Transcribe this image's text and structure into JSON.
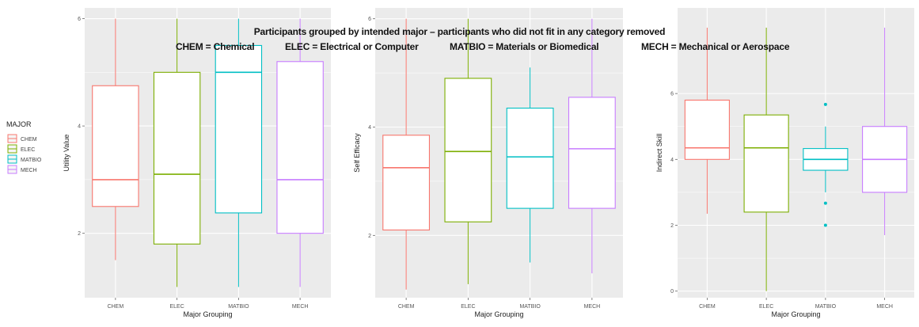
{
  "overlay": {
    "title": "Participants grouped by intended major – participants who did not fit in any category removed",
    "abbreviations": [
      "CHEM = Chemical",
      "ELEC = Electrical or Computer",
      "MATBIO = Materials or Biomedical",
      "MECH = Mechanical or Aerospace"
    ]
  },
  "legend": {
    "title": "MAJOR",
    "position": "left",
    "items": [
      "CHEM",
      "ELEC",
      "MATBIO",
      "MECH"
    ]
  },
  "colors": {
    "CHEM": "#F8766D",
    "ELEC": "#7CAE00",
    "MATBIO": "#00BFC4",
    "MECH": "#C77CFF",
    "panel_bg": "#EBEBEB",
    "grid": "#FFFFFF"
  },
  "chart_data": [
    {
      "type": "boxplot",
      "xlabel": "Major Grouping",
      "ylabel": "Utility Value",
      "categories": [
        "CHEM",
        "ELEC",
        "MATBIO",
        "MECH"
      ],
      "ylim": [
        0.8,
        6.2
      ],
      "yticks": [
        2,
        4,
        6
      ],
      "grid": true,
      "boxes": [
        {
          "category": "CHEM",
          "min": 1.5,
          "q1": 2.5,
          "median": 3.0,
          "q3": 4.75,
          "max": 6.0,
          "outliers": []
        },
        {
          "category": "ELEC",
          "min": 1.0,
          "q1": 1.8,
          "median": 3.1,
          "q3": 5.0,
          "max": 6.0,
          "outliers": []
        },
        {
          "category": "MATBIO",
          "min": 1.0,
          "q1": 2.38,
          "median": 5.0,
          "q3": 5.5,
          "max": 6.0,
          "outliers": []
        },
        {
          "category": "MECH",
          "min": 1.0,
          "q1": 2.0,
          "median": 3.0,
          "q3": 5.2,
          "max": 6.0,
          "outliers": []
        }
      ]
    },
    {
      "type": "boxplot",
      "xlabel": "Major Grouping",
      "ylabel": "Self Efficacy",
      "categories": [
        "CHEM",
        "ELEC",
        "MATBIO",
        "MECH"
      ],
      "ylim": [
        0.85,
        6.2
      ],
      "yticks": [
        2,
        4,
        6
      ],
      "grid": true,
      "boxes": [
        {
          "category": "CHEM",
          "min": 1.0,
          "q1": 2.1,
          "median": 3.25,
          "q3": 3.85,
          "max": 6.0,
          "outliers": []
        },
        {
          "category": "ELEC",
          "min": 1.1,
          "q1": 2.25,
          "median": 3.55,
          "q3": 4.9,
          "max": 6.0,
          "outliers": []
        },
        {
          "category": "MATBIO",
          "min": 1.5,
          "q1": 2.5,
          "median": 3.45,
          "q3": 4.35,
          "max": 5.1,
          "outliers": []
        },
        {
          "category": "MECH",
          "min": 1.3,
          "q1": 2.5,
          "median": 3.6,
          "q3": 4.55,
          "max": 6.0,
          "outliers": []
        }
      ]
    },
    {
      "type": "boxplot",
      "xlabel": "Major Grouping",
      "ylabel": "Indirect Skill",
      "categories": [
        "CHEM",
        "ELEC",
        "MATBIO",
        "MECH"
      ],
      "ylim": [
        -0.2,
        8.6
      ],
      "yticks": [
        0,
        2,
        4,
        6
      ],
      "grid": true,
      "boxes": [
        {
          "category": "CHEM",
          "min": 2.35,
          "q1": 4.0,
          "median": 4.35,
          "q3": 5.8,
          "max": 8.0,
          "outliers": []
        },
        {
          "category": "ELEC",
          "min": 0.0,
          "q1": 2.4,
          "median": 4.35,
          "q3": 5.35,
          "max": 8.0,
          "outliers": []
        },
        {
          "category": "MATBIO",
          "min": 3.0,
          "q1": 3.67,
          "median": 4.0,
          "q3": 4.33,
          "max": 5.0,
          "outliers": [
            5.67,
            2.67,
            2.0
          ]
        },
        {
          "category": "MECH",
          "min": 1.7,
          "q1": 3.0,
          "median": 4.0,
          "q3": 5.0,
          "max": 8.0,
          "outliers": []
        }
      ]
    }
  ]
}
